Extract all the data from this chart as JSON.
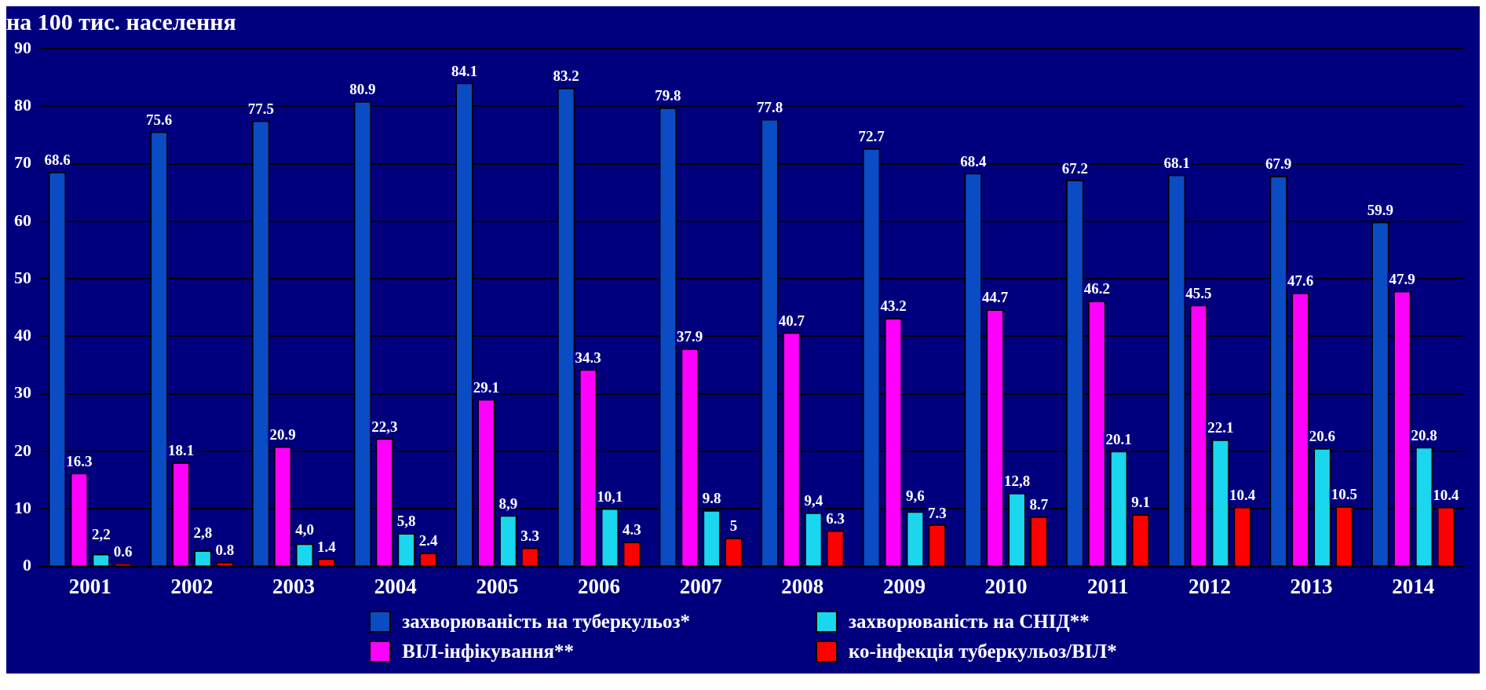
{
  "chart_data": {
    "type": "bar",
    "title": "на 100 тис. населення",
    "categories": [
      "2001",
      "2002",
      "2003",
      "2004",
      "2005",
      "2006",
      "2007",
      "2008",
      "2009",
      "2010",
      "2011",
      "2012",
      "2013",
      "2014"
    ],
    "series": [
      {
        "name": "захворюваність на туберкульоз*",
        "color": "#0a4cc4",
        "values": [
          68.6,
          75.6,
          77.5,
          80.9,
          84.1,
          83.2,
          79.8,
          77.8,
          72.7,
          68.4,
          67.2,
          68.1,
          67.9,
          59.9
        ],
        "value_labels": [
          "68.6",
          "75.6",
          "77.5",
          "80.9",
          "84.1",
          "83.2",
          "79.8",
          "77.8",
          "72.7",
          "68.4",
          "67.2",
          "68.1",
          "67.9",
          "59.9"
        ]
      },
      {
        "name": "ВІЛ-інфікування**",
        "color": "#ff00ff",
        "values": [
          16.3,
          18.1,
          20.9,
          22.3,
          29.1,
          34.3,
          37.9,
          40.7,
          43.2,
          44.7,
          46.2,
          45.5,
          47.6,
          47.9
        ],
        "value_labels": [
          "16.3",
          "18.1",
          "20.9",
          "22,3",
          "29.1",
          "34.3",
          "37.9",
          "40.7",
          "43.2",
          "44.7",
          "46.2",
          "45.5",
          "47.6",
          "47.9"
        ]
      },
      {
        "name": "захворюваність на СНІД**",
        "color": "#1ad6ee",
        "values": [
          2.2,
          2.8,
          4.0,
          5.8,
          8.9,
          10.1,
          9.8,
          9.4,
          9.6,
          12.8,
          20.1,
          22.1,
          20.6,
          20.8
        ],
        "value_labels": [
          "2,2",
          "2,8",
          "4,0",
          "5,8",
          "8,9",
          "10,1",
          "9.8",
          "9,4",
          "9,6",
          "12,8",
          "20.1",
          "22.1",
          "20.6",
          "20.8"
        ]
      },
      {
        "name": "ко-інфекція туберкульоз/ВІЛ*",
        "color": "#ff0000",
        "values": [
          0.6,
          0.8,
          1.4,
          2.4,
          3.3,
          4.3,
          5,
          6.3,
          7.3,
          8.7,
          9.1,
          10.4,
          10.5,
          10.4
        ],
        "value_labels": [
          "0.6",
          "0.8",
          "1.4",
          "2.4",
          "3.3",
          "4.3",
          "5",
          "6.3",
          "7.3",
          "8.7",
          "9.1",
          "10.4",
          "10.5",
          "10.4"
        ]
      }
    ],
    "ylim": [
      0,
      90
    ],
    "yticks": [
      0,
      10,
      20,
      30,
      40,
      50,
      60,
      70,
      80,
      90
    ],
    "grid": "y",
    "legend": "bottom"
  }
}
